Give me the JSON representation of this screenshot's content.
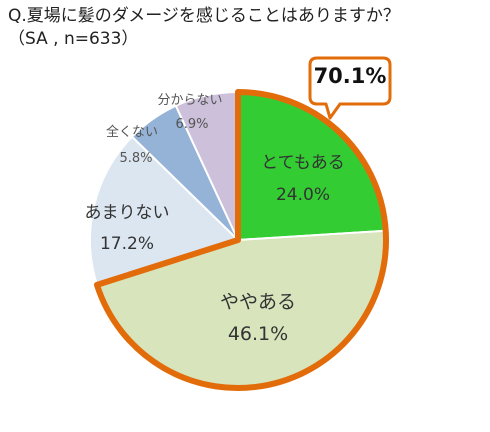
{
  "chart_data": {
    "type": "pie",
    "title": "Q.夏場に髪のダメージを感じることはありますか？",
    "subtitle": "（SA , n=633）",
    "slices": [
      {
        "label": "とてもある",
        "value": 24.0,
        "display": "24.0%",
        "color": "#33cc33"
      },
      {
        "label": "ややある",
        "value": 46.1,
        "display": "46.1%",
        "color": "#d8e4bc"
      },
      {
        "label": "あまりない",
        "value": 17.2,
        "display": "17.2%",
        "color": "#dce6f1"
      },
      {
        "label": "全くない",
        "value": 5.8,
        "display": "5.8%",
        "color": "#95b3d7"
      },
      {
        "label": "分からない",
        "value": 6.9,
        "display": "6.9%",
        "color": "#ccc0da"
      }
    ],
    "callout": {
      "text": "70.1%",
      "border_color": "#e36c0a"
    },
    "highlight_color": "#e36c0a"
  }
}
